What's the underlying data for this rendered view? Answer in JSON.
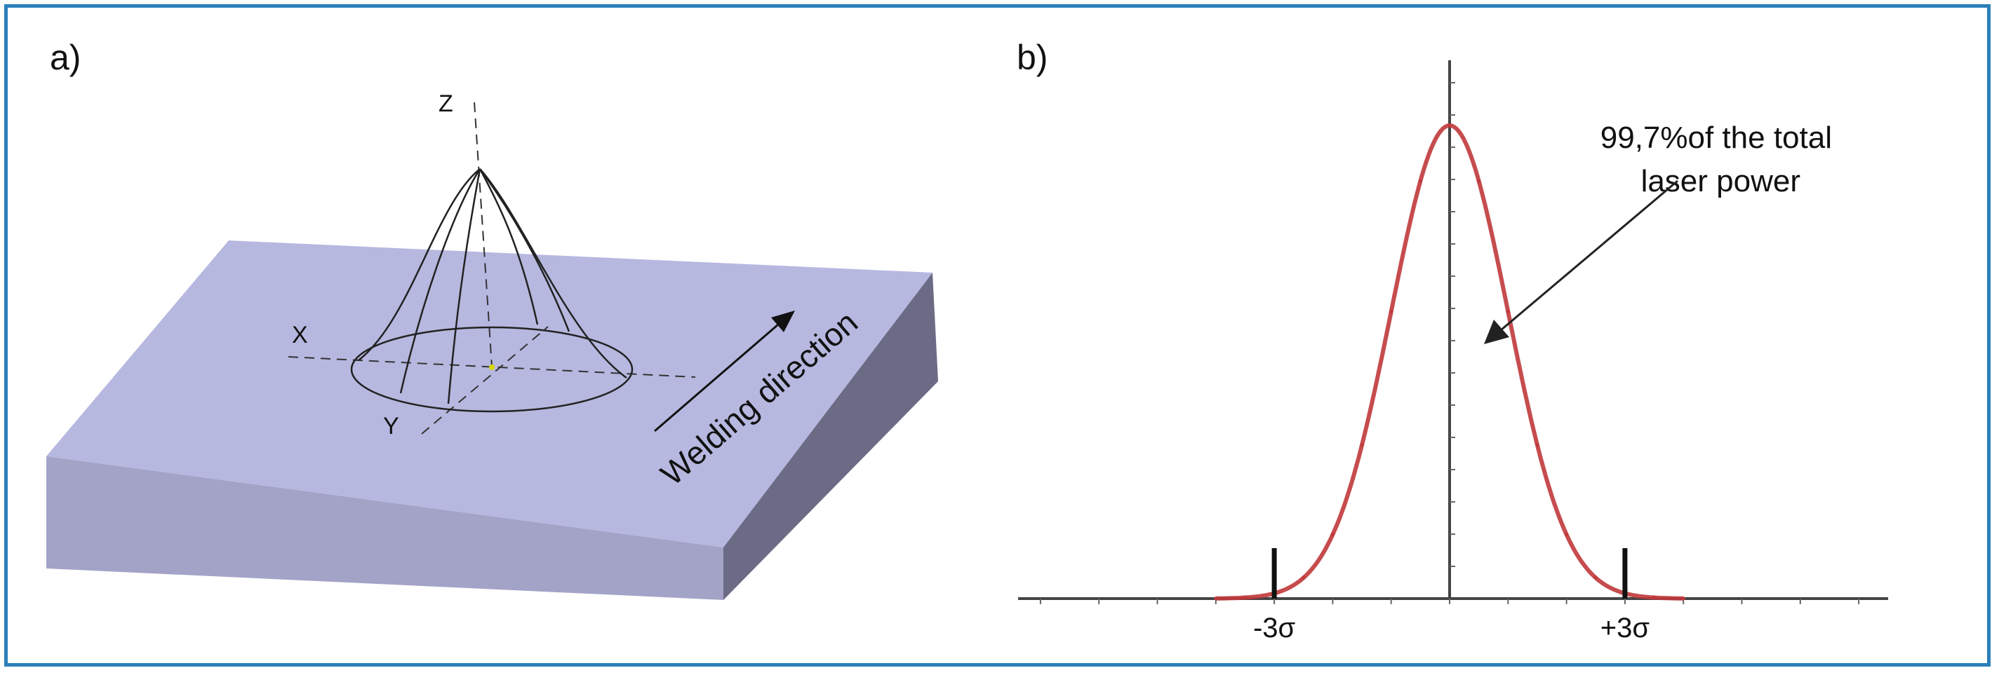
{
  "panel_a": {
    "label": "a)",
    "axis_x": "X",
    "axis_y": "Y",
    "axis_z": "Z",
    "direction_label": "Welding direction",
    "colors": {
      "plate_top": "#b7b8e0",
      "plate_front": "#a3a3c8",
      "plate_right": "#6b6b86"
    }
  },
  "panel_b": {
    "label": "b)",
    "annotation_line1": "99,7%of the total",
    "annotation_line2": "laser power",
    "tick_minus": "-3σ",
    "tick_plus": "+3σ",
    "colors": {
      "curve": "#c0393b",
      "axis": "#444444"
    }
  },
  "chart_data": {
    "type": "line",
    "title": "",
    "xlabel": "",
    "ylabel": "",
    "xlim": [
      -4.5,
      4.5
    ],
    "series": [
      {
        "x": [
          -4.0,
          -3.5,
          -3.0,
          -2.5,
          -2.0,
          -1.5,
          -1.0,
          -0.5,
          0,
          0.5,
          1.0,
          1.5,
          2.0,
          2.5,
          3.0,
          3.5,
          4.0
        ],
        "values": [
          0.0003,
          0.0022,
          0.0111,
          0.0439,
          0.1353,
          0.3247,
          0.6065,
          0.8825,
          1.0,
          0.8825,
          0.6065,
          0.3247,
          0.1353,
          0.0439,
          0.0111,
          0.0022,
          0.0003
        ]
      }
    ],
    "markers": [
      {
        "x": -3.0,
        "label": "-3σ"
      },
      {
        "x": 3.0,
        "label": "+3σ"
      }
    ]
  }
}
